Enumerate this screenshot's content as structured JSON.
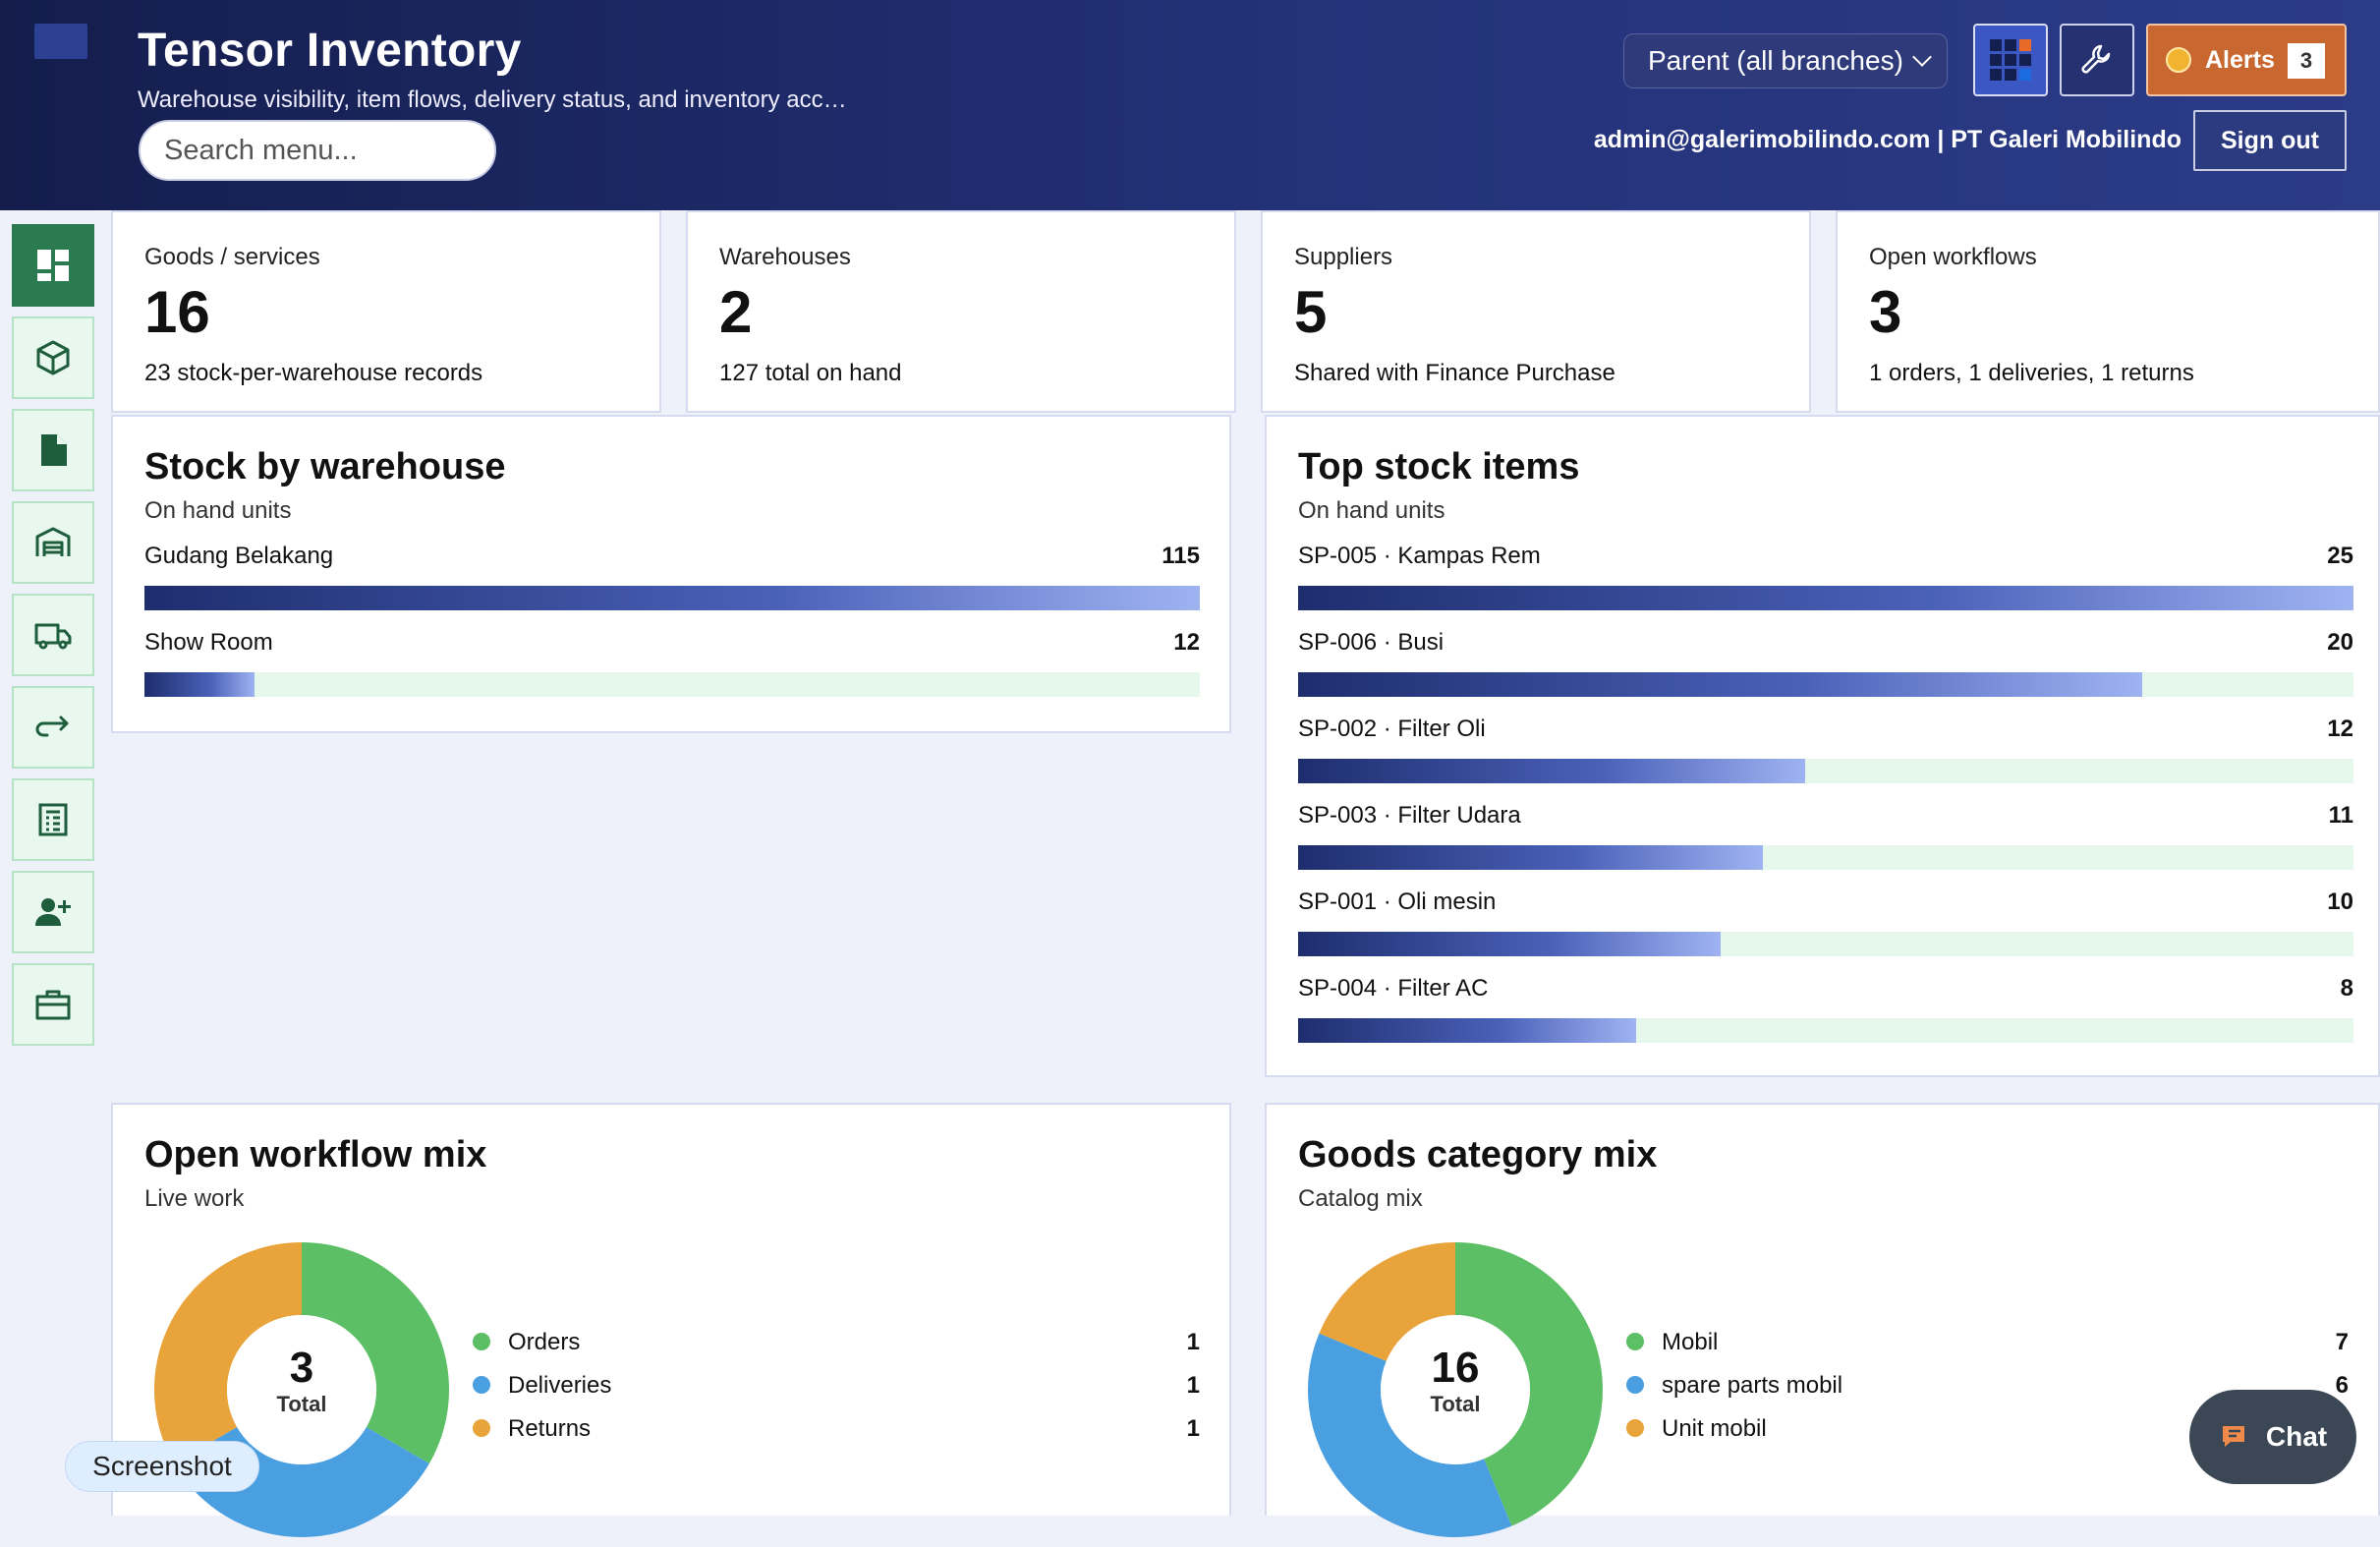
{
  "header": {
    "title": "Tensor Inventory",
    "subtitle": "Warehouse visibility, item flows, delivery status, and inventory acc…",
    "search_placeholder": "Search menu...",
    "branch_select": "Parent (all branches)",
    "alerts_label": "Alerts",
    "alerts_count": "3",
    "user_info": "admin@galerimobilindo.com | PT Galeri Mobilindo",
    "signout_label": "Sign out"
  },
  "sidebar": {
    "items": [
      {
        "icon": "dashboard-icon",
        "active": true
      },
      {
        "icon": "box-icon"
      },
      {
        "icon": "document-icon"
      },
      {
        "icon": "warehouse-icon"
      },
      {
        "icon": "truck-icon"
      },
      {
        "icon": "return-arrow-icon"
      },
      {
        "icon": "ledger-icon"
      },
      {
        "icon": "add-user-icon"
      },
      {
        "icon": "briefcase-icon"
      }
    ]
  },
  "stats": [
    {
      "label": "Goods / services",
      "value": "16",
      "note": "23 stock-per-warehouse records"
    },
    {
      "label": "Warehouses",
      "value": "2",
      "note": "127 total on hand"
    },
    {
      "label": "Suppliers",
      "value": "5",
      "note": "Shared with Finance Purchase"
    },
    {
      "label": "Open workflows",
      "value": "3",
      "note": "1 orders, 1 deliveries, 1 returns"
    }
  ],
  "stock_by_warehouse": {
    "title": "Stock by warehouse",
    "subtitle": "On hand units",
    "max": 115,
    "rows": [
      {
        "label": "Gudang Belakang",
        "value": 115
      },
      {
        "label": "Show Room",
        "value": 12
      }
    ]
  },
  "top_stock_items": {
    "title": "Top stock items",
    "subtitle": "On hand units",
    "max": 25,
    "rows": [
      {
        "label": "SP-005 · Kampas Rem",
        "value": 25
      },
      {
        "label": "SP-006 · Busi",
        "value": 20
      },
      {
        "label": "SP-002 · Filter Oli",
        "value": 12
      },
      {
        "label": "SP-003 · Filter Udara",
        "value": 11
      },
      {
        "label": "SP-001 · Oli mesin",
        "value": 10
      },
      {
        "label": "SP-004 · Filter AC",
        "value": 8
      }
    ]
  },
  "workflow_mix": {
    "title": "Open workflow mix",
    "subtitle": "Live work",
    "total": "3",
    "total_caption": "Total",
    "segments": [
      {
        "name": "Orders",
        "value": 1,
        "color": "#5dbf65"
      },
      {
        "name": "Deliveries",
        "value": 1,
        "color": "#4a9fe0"
      },
      {
        "name": "Returns",
        "value": 1,
        "color": "#e8a33a"
      }
    ]
  },
  "category_mix": {
    "title": "Goods category mix",
    "subtitle": "Catalog mix",
    "total": "16",
    "total_caption": "Total",
    "segments": [
      {
        "name": "Mobil",
        "value": 7,
        "color": "#5dbf65"
      },
      {
        "name": "spare parts mobil",
        "value": 6,
        "color": "#4a9fe0"
      },
      {
        "name": "Unit mobil",
        "value": 3,
        "color": "#e8a33a"
      }
    ]
  },
  "screenshot_chip": "Screenshot",
  "chat_label": "Chat"
}
